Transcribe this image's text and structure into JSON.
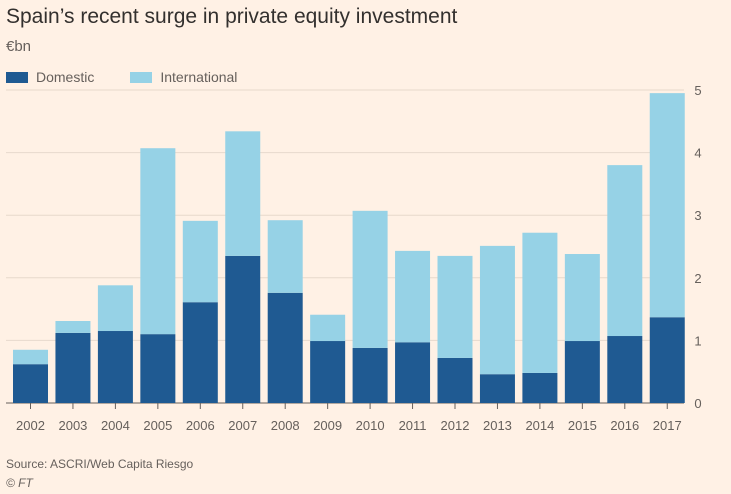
{
  "chart_data": {
    "type": "bar",
    "stacked": true,
    "title": "Spain’s recent surge in private equity investment",
    "ylabel": "€bn",
    "categories": [
      "2002",
      "2003",
      "2004",
      "2005",
      "2006",
      "2007",
      "2008",
      "2009",
      "2010",
      "2011",
      "2012",
      "2013",
      "2014",
      "2015",
      "2016",
      "2017"
    ],
    "series": [
      {
        "name": "Domestic",
        "color": "#1F5A92",
        "values": [
          0.62,
          1.12,
          1.15,
          1.1,
          1.61,
          2.35,
          1.76,
          0.99,
          0.88,
          0.97,
          0.72,
          0.46,
          0.48,
          0.99,
          1.07,
          1.37
        ]
      },
      {
        "name": "International",
        "color": "#96D2E6",
        "values": [
          0.23,
          0.19,
          0.73,
          2.97,
          1.3,
          1.99,
          1.16,
          0.42,
          2.19,
          1.46,
          1.63,
          2.05,
          2.24,
          1.39,
          2.73,
          3.58
        ]
      }
    ],
    "ylim": [
      0,
      5
    ],
    "yticks": [
      0,
      1,
      2,
      3,
      4,
      5
    ],
    "y_axis_side": "right",
    "grid": true,
    "legend": "top-left",
    "source": "Source: ASCRI/Web Capita Riesgo",
    "credit": "© FT"
  }
}
